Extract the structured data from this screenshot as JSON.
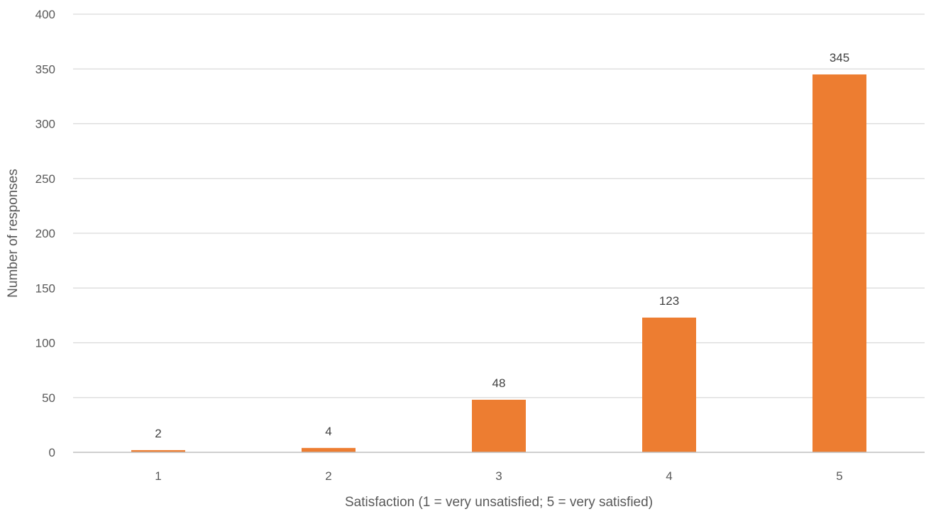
{
  "chart_data": {
    "type": "bar",
    "title": "",
    "xlabel": "Satisfaction (1 = very unsatisfied; 5 = very satisfied)",
    "ylabel": "Number of responses",
    "categories": [
      "1",
      "2",
      "3",
      "4",
      "5"
    ],
    "values": [
      2,
      4,
      48,
      123,
      345
    ],
    "data_labels": [
      "2",
      "4",
      "48",
      "123",
      "345"
    ],
    "ylim": [
      0,
      400
    ],
    "y_ticks": [
      "0",
      "50",
      "100",
      "150",
      "200",
      "250",
      "300",
      "350",
      "400"
    ],
    "grid": true,
    "legend": "none",
    "bar_color": "#ED7D31",
    "gridline_color": "#D9D9D9"
  }
}
